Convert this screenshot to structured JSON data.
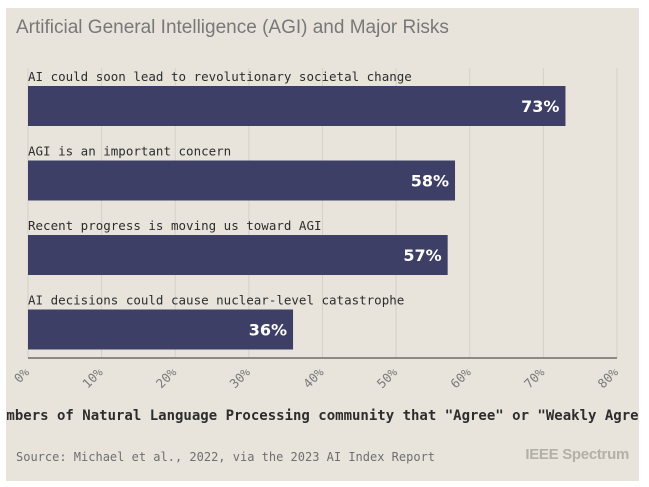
{
  "title": "Artificial General Intelligence (AGI) and Major Risks",
  "source": "Source: Michael et al., 2022, via the 2023 AI Index Report",
  "brand": "IEEE Spectrum",
  "chart_data": {
    "type": "bar",
    "orientation": "horizontal",
    "categories": [
      "AI could soon lead to revolutionary societal change",
      "AGI is an important concern",
      "Recent progress is moving us toward AGI",
      "AI decisions could cause nuclear-level catastrophe"
    ],
    "values": [
      73,
      58,
      57,
      36
    ],
    "value_labels": [
      "73%",
      "58%",
      "57%",
      "36%"
    ],
    "xlim": [
      0,
      80
    ],
    "xticks": [
      0,
      10,
      20,
      30,
      40,
      50,
      60,
      70,
      80
    ],
    "xtick_labels": [
      "0%",
      "10%",
      "20%",
      "30%",
      "40%",
      "50%",
      "60%",
      "70%",
      "80%"
    ],
    "xlabel": "Members of Natural Language Processing community that \"Agree\" or \"Weakly Agree\"",
    "grid": true,
    "bar_color": "#3e3f66"
  }
}
